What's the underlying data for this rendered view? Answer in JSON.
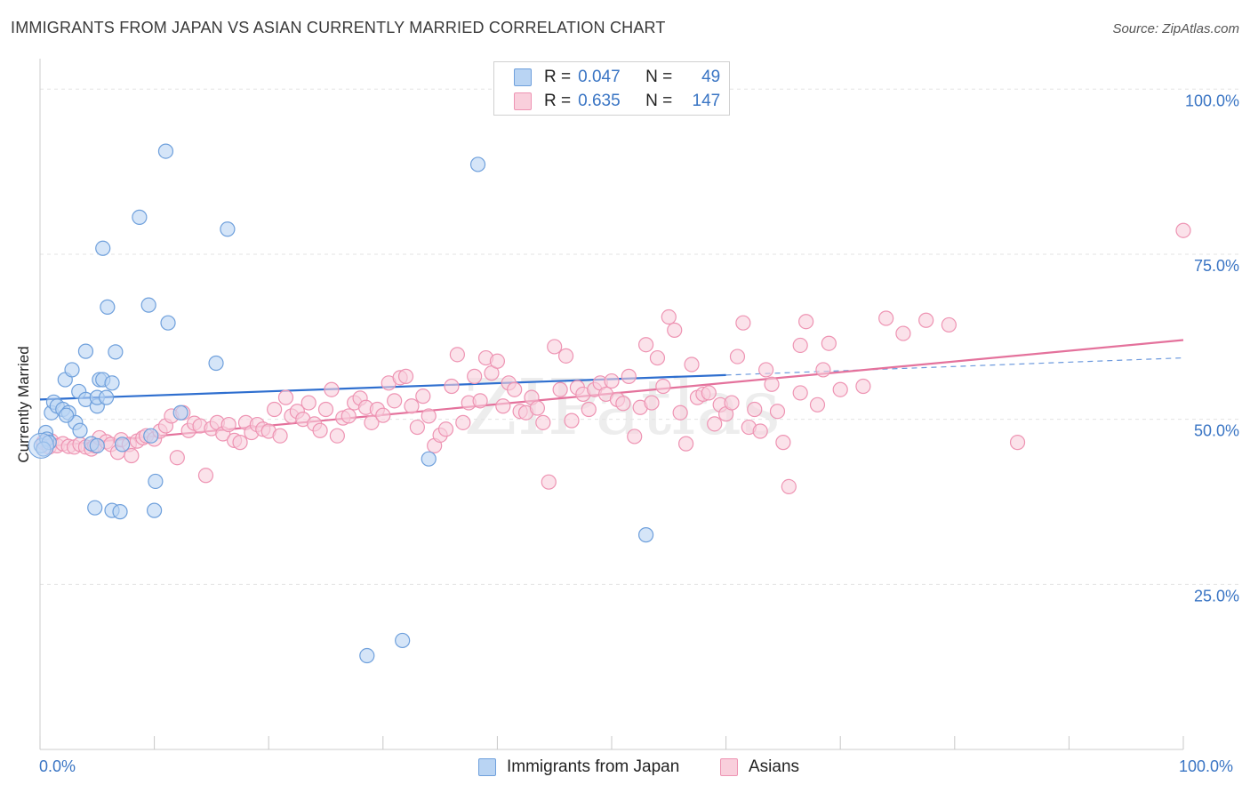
{
  "title": "IMMIGRANTS FROM JAPAN VS ASIAN CURRENTLY MARRIED CORRELATION CHART",
  "source": "Source: ZipAtlas.com",
  "watermark": "ZIPatlas",
  "legend": {
    "rows": [
      {
        "r_label": "R =",
        "r_value": "0.047",
        "n_label": "N =",
        "n_value": "49",
        "color": "#6fa8e8"
      },
      {
        "r_label": "R =",
        "r_value": "0.635",
        "n_label": "N =",
        "n_value": "147",
        "color": "#f08cb0"
      }
    ]
  },
  "bottom_legend": {
    "japan": "Immigrants from Japan",
    "asians": "Asians"
  },
  "x_axis": {
    "min_label": "0.0%",
    "max_label": "100.0%"
  },
  "colors": {
    "blue_fill": "#b9d4f3",
    "blue_stroke": "#6fa0dc",
    "blue_line": "#2f6fcf",
    "pink_fill": "#f9cfdc",
    "pink_stroke": "#ee94b3",
    "pink_line": "#e4729c",
    "tick_label": "#3a75c4",
    "grid": "#e3e3e3"
  },
  "chart_data": {
    "type": "scatter",
    "xlabel": "",
    "ylabel": "Currently Married",
    "xlim": [
      0,
      100
    ],
    "ylim": [
      0,
      103
    ],
    "y_ticks": [
      {
        "value": 25,
        "label": "25.0%"
      },
      {
        "value": 50,
        "label": "50.0%"
      },
      {
        "value": 75,
        "label": "75.0%"
      },
      {
        "value": 100,
        "label": "100.0%"
      }
    ],
    "grid": true,
    "legend_position": "top-center",
    "series": [
      {
        "name": "Immigrants from Japan",
        "color": "#6fa8e8",
        "trend": {
          "x": [
            0,
            60
          ],
          "y": [
            53.0,
            56.7
          ],
          "dashed_to": [
            100,
            59.3
          ]
        },
        "points": [
          [
            0.1,
            46.0
          ],
          [
            0.5,
            48.0
          ],
          [
            0.6,
            47.0
          ],
          [
            0.8,
            46.5
          ],
          [
            1.0,
            51.0
          ],
          [
            1.2,
            52.6
          ],
          [
            1.5,
            52.0
          ],
          [
            2.0,
            51.5
          ],
          [
            2.2,
            56.0
          ],
          [
            2.5,
            51.0
          ],
          [
            2.8,
            57.5
          ],
          [
            3.1,
            49.5
          ],
          [
            3.4,
            54.2
          ],
          [
            3.5,
            48.3
          ],
          [
            4.0,
            53.0
          ],
          [
            4.0,
            60.3
          ],
          [
            4.5,
            46.3
          ],
          [
            4.8,
            36.6
          ],
          [
            5.0,
            52.0
          ],
          [
            5.0,
            53.3
          ],
          [
            5.2,
            56.0
          ],
          [
            5.5,
            56.0
          ],
          [
            5.8,
            53.3
          ],
          [
            5.5,
            75.9
          ],
          [
            5.9,
            67.0
          ],
          [
            6.3,
            55.5
          ],
          [
            6.3,
            36.2
          ],
          [
            6.6,
            60.2
          ],
          [
            7.0,
            36.0
          ],
          [
            7.2,
            46.2
          ],
          [
            8.7,
            80.6
          ],
          [
            9.5,
            67.3
          ],
          [
            9.7,
            47.5
          ],
          [
            10.0,
            36.2
          ],
          [
            10.1,
            40.6
          ],
          [
            11.0,
            90.6
          ],
          [
            11.2,
            64.6
          ],
          [
            12.3,
            51.0
          ],
          [
            15.4,
            58.5
          ],
          [
            16.4,
            78.8
          ],
          [
            28.6,
            14.2
          ],
          [
            31.7,
            16.5
          ],
          [
            34.0,
            44.0
          ],
          [
            38.3,
            88.6
          ],
          [
            42.3,
            101.0
          ],
          [
            53.0,
            32.5
          ],
          [
            5.0,
            46.0
          ],
          [
            2.3,
            50.6
          ],
          [
            0.3,
            45.5
          ]
        ]
      },
      {
        "name": "Asians",
        "color": "#f08cb0",
        "trend": {
          "x": [
            0,
            100
          ],
          "y": [
            45.8,
            62.0
          ]
        },
        "points": [
          [
            0.3,
            46.5
          ],
          [
            0.8,
            45.8
          ],
          [
            1.0,
            46.7
          ],
          [
            1.5,
            46.0
          ],
          [
            2.0,
            46.3
          ],
          [
            2.5,
            45.9
          ],
          [
            3.0,
            45.8
          ],
          [
            3.5,
            46.2
          ],
          [
            4.0,
            45.8
          ],
          [
            4.5,
            45.5
          ],
          [
            4.8,
            46.0
          ],
          [
            5.2,
            47.2
          ],
          [
            5.8,
            46.6
          ],
          [
            6.2,
            46.2
          ],
          [
            6.8,
            45.0
          ],
          [
            7.1,
            46.9
          ],
          [
            7.8,
            46.2
          ],
          [
            8.0,
            44.5
          ],
          [
            8.5,
            46.7
          ],
          [
            9.0,
            47.2
          ],
          [
            9.3,
            47.5
          ],
          [
            10.0,
            47.0
          ],
          [
            10.5,
            48.2
          ],
          [
            11.0,
            49.0
          ],
          [
            11.5,
            50.5
          ],
          [
            12.0,
            44.2
          ],
          [
            12.5,
            51.0
          ],
          [
            13.0,
            48.3
          ],
          [
            13.5,
            49.4
          ],
          [
            14.0,
            49.0
          ],
          [
            14.5,
            41.5
          ],
          [
            15.0,
            48.6
          ],
          [
            15.5,
            49.5
          ],
          [
            16.0,
            47.8
          ],
          [
            16.5,
            49.2
          ],
          [
            17.0,
            46.8
          ],
          [
            17.5,
            46.5
          ],
          [
            18.0,
            49.5
          ],
          [
            18.5,
            48.0
          ],
          [
            19.0,
            49.2
          ],
          [
            19.5,
            48.5
          ],
          [
            20.0,
            48.2
          ],
          [
            20.5,
            51.5
          ],
          [
            21.0,
            47.5
          ],
          [
            21.5,
            53.3
          ],
          [
            22.0,
            50.5
          ],
          [
            22.5,
            51.2
          ],
          [
            23.0,
            50.0
          ],
          [
            23.5,
            52.5
          ],
          [
            24.0,
            49.3
          ],
          [
            24.5,
            48.3
          ],
          [
            25.0,
            51.5
          ],
          [
            25.5,
            54.5
          ],
          [
            26.0,
            47.5
          ],
          [
            26.5,
            50.2
          ],
          [
            27.0,
            50.5
          ],
          [
            27.5,
            52.5
          ],
          [
            28.0,
            53.2
          ],
          [
            28.5,
            51.8
          ],
          [
            29.0,
            49.5
          ],
          [
            29.5,
            51.5
          ],
          [
            30.0,
            50.6
          ],
          [
            30.5,
            55.5
          ],
          [
            31.0,
            52.8
          ],
          [
            31.5,
            56.3
          ],
          [
            32.0,
            56.5
          ],
          [
            32.5,
            52.0
          ],
          [
            33.0,
            48.8
          ],
          [
            33.5,
            53.5
          ],
          [
            34.0,
            50.5
          ],
          [
            34.5,
            46.0
          ],
          [
            35.0,
            47.6
          ],
          [
            35.5,
            48.5
          ],
          [
            36.0,
            55.0
          ],
          [
            36.5,
            59.8
          ],
          [
            37.0,
            49.5
          ],
          [
            37.5,
            52.5
          ],
          [
            38.0,
            56.5
          ],
          [
            38.5,
            52.8
          ],
          [
            39.0,
            59.3
          ],
          [
            39.5,
            57.0
          ],
          [
            40.0,
            58.8
          ],
          [
            40.5,
            52.0
          ],
          [
            41.0,
            55.5
          ],
          [
            41.5,
            54.5
          ],
          [
            42.0,
            51.2
          ],
          [
            42.5,
            51.0
          ],
          [
            43.0,
            53.3
          ],
          [
            43.5,
            51.7
          ],
          [
            44.0,
            49.5
          ],
          [
            44.5,
            40.5
          ],
          [
            45.0,
            61.0
          ],
          [
            45.5,
            54.5
          ],
          [
            46.0,
            59.6
          ],
          [
            46.5,
            49.8
          ],
          [
            47.0,
            54.8
          ],
          [
            47.5,
            53.8
          ],
          [
            48.0,
            51.5
          ],
          [
            48.5,
            54.5
          ],
          [
            49.0,
            55.5
          ],
          [
            49.5,
            53.8
          ],
          [
            50.0,
            55.8
          ],
          [
            50.5,
            53.0
          ],
          [
            51.0,
            52.4
          ],
          [
            51.5,
            56.5
          ],
          [
            52.0,
            47.4
          ],
          [
            52.5,
            51.8
          ],
          [
            53.0,
            61.3
          ],
          [
            53.5,
            52.5
          ],
          [
            54.0,
            59.3
          ],
          [
            54.5,
            55.0
          ],
          [
            55.0,
            65.5
          ],
          [
            55.5,
            63.5
          ],
          [
            56.0,
            51.0
          ],
          [
            56.5,
            46.3
          ],
          [
            57.0,
            58.3
          ],
          [
            57.5,
            53.3
          ],
          [
            58.0,
            53.8
          ],
          [
            58.5,
            54.0
          ],
          [
            59.0,
            49.3
          ],
          [
            59.5,
            52.2
          ],
          [
            60.0,
            50.8
          ],
          [
            60.5,
            52.5
          ],
          [
            61.0,
            59.5
          ],
          [
            61.5,
            64.6
          ],
          [
            62.0,
            48.8
          ],
          [
            62.5,
            51.5
          ],
          [
            63.0,
            48.2
          ],
          [
            63.5,
            57.5
          ],
          [
            64.0,
            55.3
          ],
          [
            64.5,
            51.2
          ],
          [
            65.0,
            46.5
          ],
          [
            65.5,
            39.8
          ],
          [
            66.5,
            61.2
          ],
          [
            67.0,
            64.8
          ],
          [
            68.0,
            52.2
          ],
          [
            68.5,
            57.5
          ],
          [
            69.0,
            61.5
          ],
          [
            70.0,
            54.5
          ],
          [
            72.0,
            55.0
          ],
          [
            74.0,
            65.3
          ],
          [
            75.5,
            63.0
          ],
          [
            77.5,
            65.0
          ],
          [
            79.5,
            64.3
          ],
          [
            85.5,
            46.5
          ],
          [
            100.0,
            78.6
          ],
          [
            66.5,
            54.0
          ]
        ]
      }
    ]
  }
}
